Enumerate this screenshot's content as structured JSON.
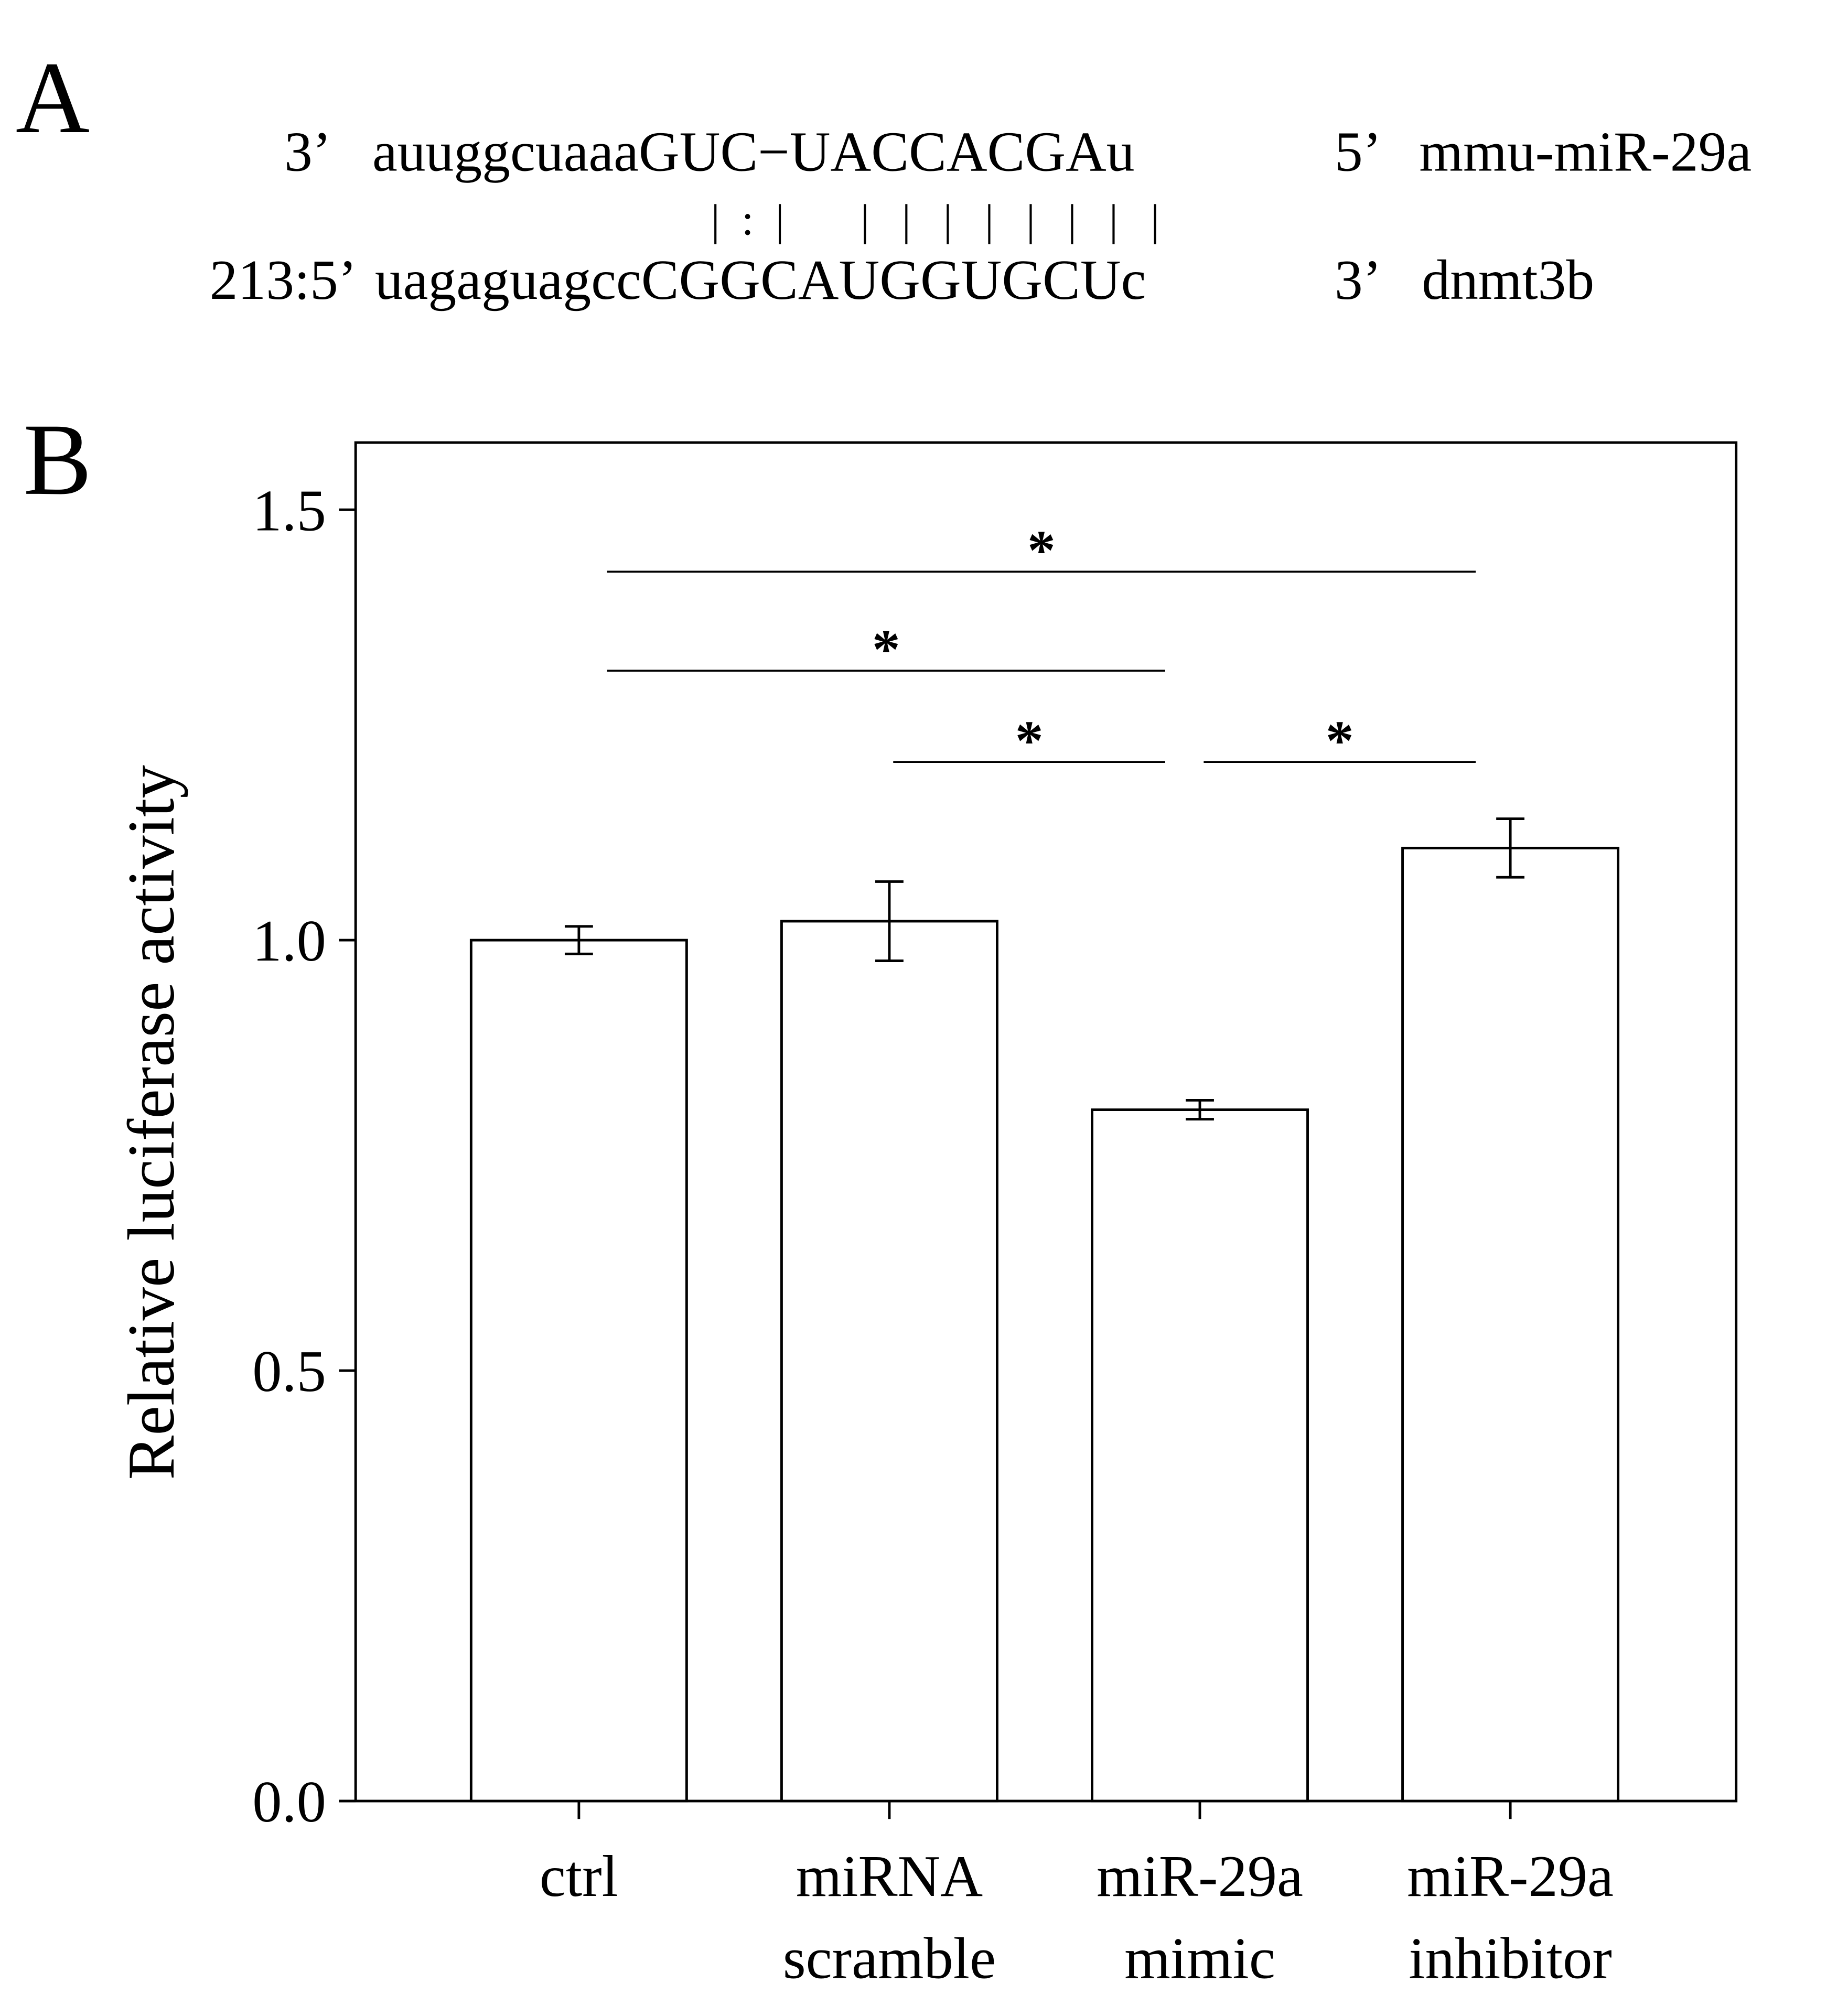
{
  "panel_a": {
    "label": "A",
    "mirna": {
      "prefix": "3’",
      "sequence": "auuggcuaaaGUC−UACCACGAu",
      "suffix": "5’",
      "name": "mmu-miR-29a"
    },
    "pairing": "|  :  |       |   |   |   |   |   |   |   |",
    "target": {
      "prefix": "213:5’",
      "sequence": "uagaguagccCGGCAUGGUGCUc",
      "suffix": "3’",
      "name": "dnmt3b"
    }
  },
  "chart_data": {
    "type": "bar",
    "panel_label": "B",
    "y_label": "Relative luciferase activity",
    "categories": [
      [
        "ctrl"
      ],
      [
        "miRNA",
        "scramble"
      ],
      [
        "miR-29a",
        "mimic"
      ],
      [
        "miR-29a",
        "inhibitor"
      ]
    ],
    "values": [
      1.0,
      1.022,
      0.803,
      1.107
    ],
    "errors": [
      0.016,
      0.046,
      0.011,
      0.034
    ],
    "color": "#ffffff",
    "ylim": [
      0,
      1.578
    ],
    "yticks": [
      {
        "value": 0,
        "label": "0.0"
      },
      0.5,
      {
        "value": 1,
        "label": "1.0"
      },
      1.5
    ],
    "significance": [
      {
        "from": 0,
        "to": 3,
        "y": 1.428,
        "label": "*"
      },
      {
        "from": 0,
        "to": 2,
        "y": 1.313,
        "label": "*"
      },
      {
        "from": 1,
        "to": 2,
        "y": 1.207,
        "label": "*"
      },
      {
        "from": 2,
        "to": 3,
        "y": 1.207,
        "label": "*"
      }
    ]
  }
}
